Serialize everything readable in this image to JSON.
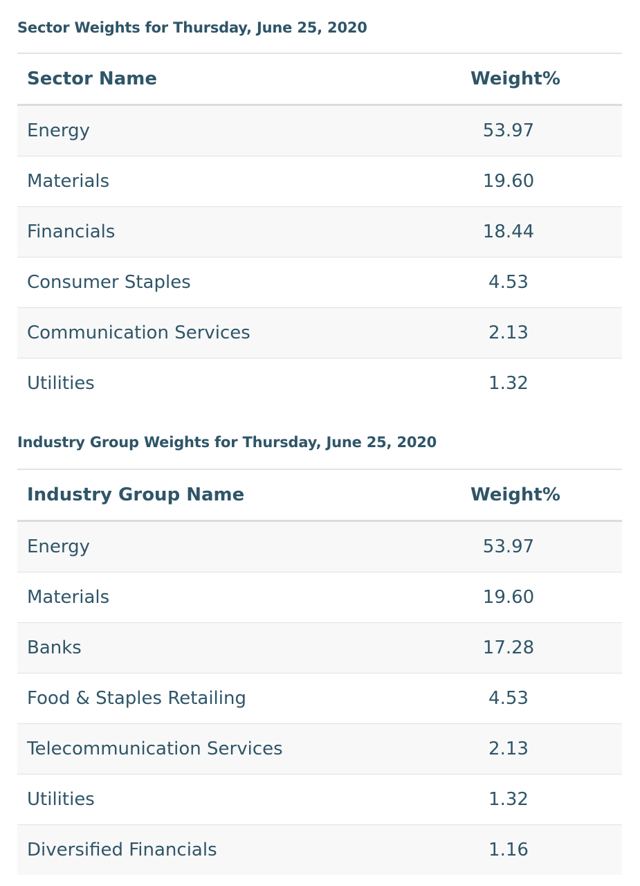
{
  "sector": {
    "title": "Sector Weights for Thursday, June 25, 2020",
    "header_name": "Sector Name",
    "header_weight": "Weight%",
    "rows": [
      {
        "name": "Energy",
        "weight": "53.97"
      },
      {
        "name": "Materials",
        "weight": "19.60"
      },
      {
        "name": "Financials",
        "weight": "18.44"
      },
      {
        "name": "Consumer Staples",
        "weight": "4.53"
      },
      {
        "name": "Communication Services",
        "weight": "2.13"
      },
      {
        "name": "Utilities",
        "weight": "1.32"
      }
    ]
  },
  "industry": {
    "title": "Industry Group Weights for Thursday, June 25, 2020",
    "header_name": "Industry Group Name",
    "header_weight": "Weight%",
    "rows": [
      {
        "name": "Energy",
        "weight": "53.97"
      },
      {
        "name": "Materials",
        "weight": "19.60"
      },
      {
        "name": "Banks",
        "weight": "17.28"
      },
      {
        "name": "Food & Staples Retailing",
        "weight": "4.53"
      },
      {
        "name": "Telecommunication Services",
        "weight": "2.13"
      },
      {
        "name": "Utilities",
        "weight": "1.32"
      },
      {
        "name": "Diversified Financials",
        "weight": "1.16"
      }
    ]
  }
}
